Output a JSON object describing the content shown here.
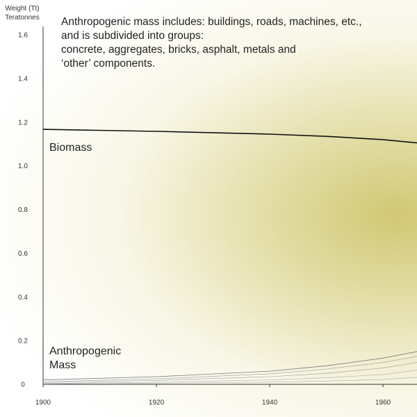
{
  "chart_data": {
    "type": "line",
    "ylabel_lines": [
      "Weight (Tt)",
      "Teratonnes"
    ],
    "annotation_lines": [
      "Anthropogenic mass includes: buildings, roads, machines, etc.,",
      "and is subdivided into groups:",
      "concrete, aggregates, bricks, asphalt, metals and",
      "‘other’ components."
    ],
    "xlim": [
      1900,
      1966
    ],
    "ylim": [
      0,
      1.6
    ],
    "x_ticks": [
      1900,
      1920,
      1940,
      1960
    ],
    "y_ticks": [
      0,
      0.2,
      0.4,
      0.6,
      0.8,
      1.0,
      1.2,
      1.4,
      1.6
    ],
    "y_tick_labels": [
      "0",
      "0.2",
      "0.4",
      "0.6",
      "0.8",
      "1.0",
      "1.2",
      "1.4",
      "1.6"
    ],
    "series_labels": {
      "biomass": "Biomass",
      "anthropogenic": [
        "Anthropogenic",
        "Mass"
      ]
    },
    "series": [
      {
        "id": "biomass",
        "color": "#111111",
        "width": 1.6,
        "points": [
          [
            1900,
            1.167
          ],
          [
            1920,
            1.158
          ],
          [
            1940,
            1.145
          ],
          [
            1950,
            1.135
          ],
          [
            1960,
            1.12
          ],
          [
            1966,
            1.105
          ]
        ]
      },
      {
        "id": "anthropogenic",
        "color": "#777777",
        "width": 0.8,
        "points": [
          [
            1900,
            0.02
          ],
          [
            1920,
            0.035
          ],
          [
            1940,
            0.06
          ],
          [
            1950,
            0.085
          ],
          [
            1960,
            0.12
          ],
          [
            1966,
            0.15
          ]
        ]
      },
      {
        "id": "anthropogenic-component",
        "color": "#999999",
        "width": 0.6,
        "points": [
          [
            1900,
            0.012
          ],
          [
            1920,
            0.025
          ],
          [
            1940,
            0.048
          ],
          [
            1950,
            0.07
          ],
          [
            1960,
            0.1
          ],
          [
            1966,
            0.128
          ]
        ]
      },
      {
        "id": "anthropogenic-component",
        "color": "#999999",
        "width": 0.6,
        "points": [
          [
            1900,
            0.008
          ],
          [
            1920,
            0.018
          ],
          [
            1940,
            0.035
          ],
          [
            1950,
            0.05
          ],
          [
            1960,
            0.075
          ],
          [
            1966,
            0.1
          ]
        ]
      },
      {
        "id": "anthropogenic-component",
        "color": "#aaaaaa",
        "width": 0.6,
        "points": [
          [
            1900,
            0.004
          ],
          [
            1920,
            0.01
          ],
          [
            1940,
            0.02
          ],
          [
            1950,
            0.03
          ],
          [
            1960,
            0.045
          ],
          [
            1966,
            0.065
          ]
        ]
      },
      {
        "id": "anthropogenic-component",
        "color": "#aaaaaa",
        "width": 0.6,
        "points": [
          [
            1900,
            0.002
          ],
          [
            1920,
            0.005
          ],
          [
            1940,
            0.01
          ],
          [
            1950,
            0.015
          ],
          [
            1960,
            0.022
          ],
          [
            1966,
            0.032
          ]
        ]
      }
    ]
  }
}
